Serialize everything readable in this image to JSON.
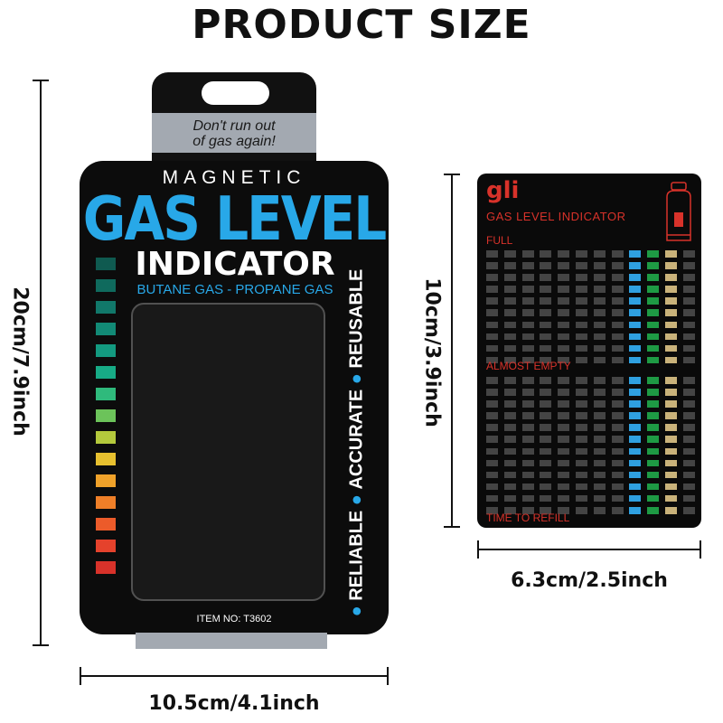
{
  "title": "PRODUCT SIZE",
  "dimensions": {
    "package_height": "20cm/7.9inch",
    "package_width": "10.5cm/4.1inch",
    "card_height": "10cm/3.9inch",
    "card_width": "6.3cm/2.5inch"
  },
  "package": {
    "tagline_1": "Don't run out",
    "tagline_2": "of gas again!",
    "magnetic": "MAGNETIC",
    "headline": "GAS LEVEL",
    "indicator": "INDICATOR",
    "gas_types": "BUTANE GAS - PROPANE GAS",
    "features": [
      "RELIABLE",
      "ACCURATE",
      "REUSABLE"
    ],
    "item_no": "ITEM NO: T3602",
    "strip_colors": [
      "#0f5a50",
      "#0f6a5d",
      "#11786a",
      "#128a76",
      "#139a80",
      "#17ab86",
      "#2fba7c",
      "#6cc35a",
      "#b4c93c",
      "#e7c02f",
      "#f0a22a",
      "#ef7f28",
      "#ec5b2a",
      "#e5422c",
      "#d8322a"
    ]
  },
  "card": {
    "brand": "gli",
    "title": "GAS LEVEL INDICATOR",
    "full": "FULL",
    "almost_empty": "ALMOST EMPTY",
    "refill": "TIME TO REFILL",
    "icon": "gas-cylinder-icon",
    "colors": {
      "text": "#d8322a",
      "blue": "#2fa0e0",
      "green": "#1e9a44",
      "tan": "#c9b27a"
    }
  }
}
